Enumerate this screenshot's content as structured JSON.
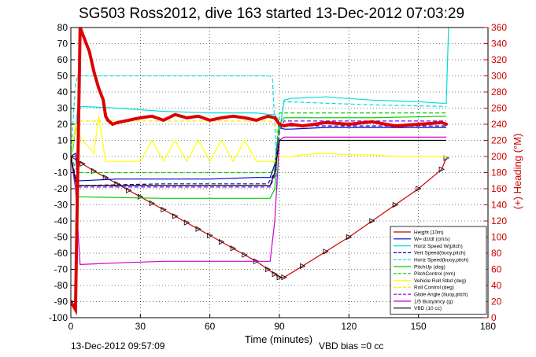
{
  "title": "SG503 Ross2012, dive 163 started 13-Dec-2012 07:03:29",
  "footer_left": "13-Dec-2012 09:57:09",
  "footer_right": "VBD bias =0 cc",
  "chart_data": {
    "type": "line",
    "xlabel": "Time (minutes)",
    "ylabel": "",
    "y2label": "(+) Heading (°M)",
    "xlim": [
      0,
      180
    ],
    "ylim": [
      -100,
      80
    ],
    "y2lim": [
      0,
      360
    ],
    "xticks": [
      0,
      30,
      60,
      90,
      120,
      150,
      180
    ],
    "yticks": [
      -100,
      -90,
      -80,
      -70,
      -60,
      -50,
      -40,
      -30,
      -20,
      -10,
      0,
      10,
      20,
      30,
      40,
      50,
      60,
      70,
      80
    ],
    "y2ticks": [
      0,
      20,
      40,
      60,
      80,
      100,
      120,
      140,
      160,
      180,
      200,
      220,
      240,
      260,
      280,
      300,
      320,
      340,
      360
    ],
    "grid": true,
    "legend_position": "bottom-right",
    "series": [
      {
        "name": "Height (10m)",
        "color": "#cc0000",
        "style": "solid",
        "marker": "triangle",
        "x": [
          0,
          5,
          10,
          15,
          20,
          25,
          30,
          35,
          40,
          45,
          50,
          55,
          60,
          65,
          70,
          75,
          80,
          85,
          88,
          90,
          92,
          100,
          110,
          120,
          130,
          140,
          150,
          160,
          162
        ],
        "y": [
          0,
          -4.5,
          -9,
          -13,
          -17,
          -21,
          -25,
          -29,
          -33,
          -37,
          -41,
          -45,
          -49,
          -53,
          -57,
          -61,
          -65,
          -70,
          -73,
          -75,
          -75,
          -68,
          -59,
          -50,
          -40,
          -30,
          -20,
          -8,
          -1
        ]
      },
      {
        "name": "W= dz/dt (cm/s)",
        "color": "#0000cc",
        "style": "solid",
        "x": [
          0,
          2,
          3,
          5,
          20,
          40,
          60,
          80,
          86,
          88,
          90,
          92,
          95,
          110,
          130,
          150,
          162
        ],
        "y": [
          0,
          2,
          -15,
          -15,
          -14,
          -14,
          -14,
          -13,
          -13,
          -5,
          18,
          17,
          17,
          18,
          18,
          18,
          18
        ]
      },
      {
        "name": "Horiz Speed W(pitch)",
        "color": "#00dddd",
        "style": "solid",
        "x": [
          0,
          1,
          3,
          5,
          20,
          40,
          60,
          80,
          86,
          88,
          89,
          90,
          92,
          95,
          110,
          130,
          150,
          160,
          162,
          163
        ],
        "y": [
          0,
          5,
          30,
          31,
          30,
          28,
          27,
          27,
          26,
          26,
          24,
          15,
          35,
          36,
          37,
          35,
          34,
          33,
          33,
          80
        ]
      },
      {
        "name": "Vert Speed(buoy,pitch)",
        "color": "#0000cc",
        "style": "dashed",
        "x": [
          0,
          3,
          5,
          40,
          85,
          88,
          90,
          92,
          130,
          162
        ],
        "y": [
          0,
          -18,
          -18,
          -17,
          -17,
          -10,
          18,
          19,
          19,
          19
        ]
      },
      {
        "name": "Horiz Speed(buoy,pitch)",
        "color": "#00dddd",
        "style": "dashed",
        "x": [
          0,
          2,
          3,
          5,
          40,
          86,
          87,
          88,
          89,
          90,
          92,
          130,
          162
        ],
        "y": [
          0,
          45,
          50,
          50,
          50,
          50,
          48,
          20,
          -20,
          15,
          34,
          32,
          31
        ]
      },
      {
        "name": "PitchUp (deg)",
        "color": "#00cc00",
        "style": "solid",
        "x": [
          0,
          3,
          5,
          40,
          86,
          88,
          90,
          92,
          130,
          162
        ],
        "y": [
          0,
          -25,
          -25,
          -26,
          -26,
          -20,
          20,
          24,
          24,
          25
        ]
      },
      {
        "name": "PitchControl (mm)",
        "color": "#00cc00",
        "style": "dashed",
        "x": [
          0,
          3,
          5,
          40,
          86,
          88,
          90,
          92,
          130,
          162
        ],
        "y": [
          0,
          -10,
          -10,
          -10,
          -10,
          -8,
          27,
          27,
          27,
          27
        ]
      },
      {
        "name": "Vehicle Roll Stbd (deg)",
        "color": "#ffff00",
        "style": "solid",
        "x": [
          0,
          2,
          3,
          5,
          10,
          12,
          15,
          20,
          25,
          28,
          30,
          35,
          40,
          45,
          50,
          55,
          60,
          65,
          70,
          75,
          80,
          85,
          88,
          90,
          95,
          100,
          110,
          120,
          130,
          140,
          150,
          160,
          162
        ],
        "y": [
          0,
          20,
          15,
          10,
          2,
          25,
          -3,
          -3,
          -3,
          -3,
          -3,
          10,
          -3,
          10,
          -3,
          10,
          -3,
          10,
          -3,
          10,
          -3,
          -3,
          -3,
          0,
          0,
          1,
          2,
          1,
          1,
          0,
          0,
          0,
          0
        ]
      },
      {
        "name": "Roll Control (deg)",
        "color": "#ffee00",
        "style": "dashed",
        "x": [
          0,
          3,
          5,
          40,
          86,
          88,
          90,
          92,
          130,
          162
        ],
        "y": [
          0,
          22,
          22,
          22,
          22,
          20,
          10,
          10,
          10,
          10
        ]
      },
      {
        "name": "Glide Angle (buoy,pitch)",
        "color": "#8800ff",
        "style": "dashed",
        "x": [
          0,
          3,
          5,
          40,
          86,
          88,
          90,
          92,
          130,
          162
        ],
        "y": [
          0,
          -19,
          -19,
          -19,
          -19,
          -12,
          15,
          22,
          22,
          22
        ]
      },
      {
        "name": "1/5 Buoyancy (g)",
        "color": "#cc00cc",
        "style": "solid",
        "x": [
          0,
          2,
          4,
          20,
          40,
          60,
          80,
          86,
          88,
          90,
          92,
          130,
          162
        ],
        "y": [
          0,
          -20,
          -67,
          -66,
          -65,
          -65,
          -65,
          -65,
          -40,
          10,
          12,
          12,
          12
        ]
      },
      {
        "name": "VBD (10 cc)",
        "color": "#000000",
        "style": "solid",
        "x": [
          0,
          2,
          3,
          86,
          88,
          90,
          92,
          162
        ],
        "y": [
          0,
          -15,
          -18,
          -18,
          -10,
          10,
          10,
          10
        ]
      },
      {
        "name": "Heading",
        "color": "#dd0000",
        "style": "dots",
        "axis": "right",
        "x": [
          0,
          2,
          4,
          6,
          8,
          10,
          12,
          14,
          15,
          16,
          18,
          20,
          25,
          30,
          35,
          40,
          45,
          50,
          55,
          60,
          65,
          70,
          75,
          80,
          85,
          88,
          90,
          92,
          95,
          100,
          110,
          120,
          130,
          140,
          150,
          160,
          162
        ],
        "y": [
          20,
          10,
          360,
          345,
          330,
          305,
          285,
          270,
          250,
          245,
          240,
          242,
          245,
          248,
          250,
          245,
          252,
          248,
          250,
          245,
          248,
          250,
          248,
          245,
          250,
          248,
          240,
          238,
          240,
          238,
          242,
          240,
          243,
          238,
          240,
          242,
          240
        ]
      }
    ]
  }
}
